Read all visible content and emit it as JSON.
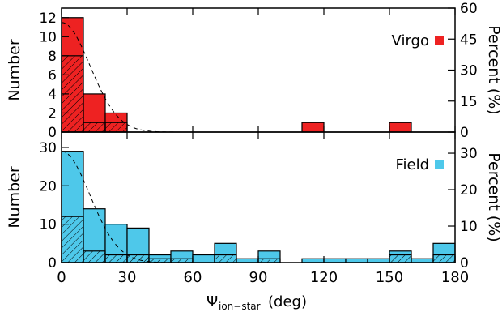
{
  "chart_data": [
    {
      "type": "bar",
      "panel": "top",
      "bin_edges": [
        0,
        10,
        20,
        30,
        40,
        50,
        60,
        70,
        80,
        90,
        100,
        110,
        120,
        130,
        140,
        150,
        160,
        170,
        180
      ],
      "series": [
        {
          "name": "Virgo",
          "color": "#ee2222",
          "values": [
            12,
            4,
            2,
            0,
            0,
            0,
            0,
            0,
            0,
            0,
            0,
            1,
            0,
            0,
            0,
            1,
            0,
            0
          ]
        },
        {
          "name": "",
          "pattern": "hatched",
          "values": [
            8,
            1,
            1,
            0,
            0,
            0,
            0,
            0,
            0,
            0,
            0,
            0,
            0,
            0,
            0,
            0,
            0,
            0
          ]
        }
      ],
      "gaussian_curve": {
        "peak": 11.5,
        "sigma_deg": 13
      },
      "ylabel": "Number",
      "ylabel_right": "Percent (%)",
      "ylim": [
        0,
        13
      ],
      "yticks": [
        "0",
        "2",
        "4",
        "6",
        "8",
        "10",
        "12"
      ],
      "yticks_right": [
        "0",
        "15",
        "30",
        "45",
        "60"
      ],
      "right_ticks_count_values": [
        0,
        3.25,
        6.5,
        9.75,
        13
      ],
      "legend": {
        "label": "Virgo",
        "position": "upper-right"
      }
    },
    {
      "type": "bar",
      "panel": "bottom",
      "bin_edges": [
        0,
        10,
        20,
        30,
        40,
        50,
        60,
        70,
        80,
        90,
        100,
        110,
        120,
        130,
        140,
        150,
        160,
        170,
        180
      ],
      "series": [
        {
          "name": "Field",
          "color": "#4ec8ea",
          "values": [
            29,
            14,
            10,
            9,
            2,
            3,
            2,
            5,
            1,
            3,
            0,
            1,
            1,
            1,
            1,
            3,
            1,
            5
          ]
        },
        {
          "name": "",
          "pattern": "hatched",
          "values": [
            12,
            3,
            2,
            2,
            1,
            1,
            0,
            2,
            0,
            1,
            0,
            0,
            0,
            0,
            0,
            2,
            0,
            2
          ]
        }
      ],
      "gaussian_curve": {
        "peak": 29,
        "sigma_deg": 13
      },
      "ylabel": "Number",
      "ylabel_right": "Percent (%)",
      "ylim": [
        0,
        34
      ],
      "yticks": [
        "0",
        "10",
        "20",
        "30"
      ],
      "yticks_right": [
        "0",
        "10",
        "20",
        "30"
      ],
      "right_ticks_count_values": [
        0,
        9.5,
        19,
        28.5
      ],
      "legend": {
        "label": "Field",
        "position": "upper-right"
      },
      "xticks": [
        "0",
        "30",
        "60",
        "90",
        "120",
        "150",
        "180"
      ],
      "xlabel_symbol": "Ψ",
      "xlabel_sub": "ion−star",
      "xlabel_unit": "(deg)"
    }
  ]
}
